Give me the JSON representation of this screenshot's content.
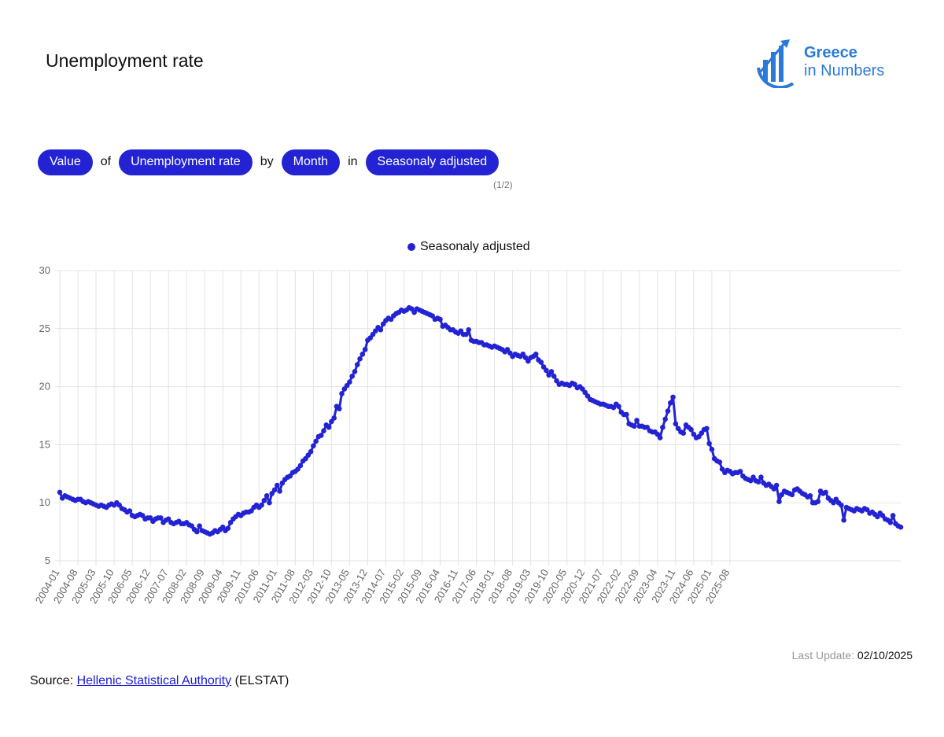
{
  "header": {
    "title": "Unemployment rate",
    "logo_line1": "Greece",
    "logo_line2": "in Numbers",
    "brand_color": "#2a7ad9",
    "logo_icon": "bar-chart-arrow-icon"
  },
  "filters": {
    "measure": "Value",
    "conn1": "of",
    "indicator": "Unemployment rate",
    "conn2": "by",
    "period": "Month",
    "conn3": "in",
    "series": "Seasonaly adjusted",
    "pager": "(1/2)",
    "pill_color": "#2323d4"
  },
  "footer": {
    "last_update_label": "Last Update:",
    "last_update_value": "02/10/2025",
    "source_prefix": "Source:",
    "source_link": "Hellenic Statistical Authority",
    "source_suffix": "(ELSTAT)"
  },
  "chart_data": {
    "type": "line",
    "legend_position": "top",
    "grid": true,
    "x_start": "2004-01",
    "x_end": "2025-08",
    "tick_labels": [
      "2004-01",
      "2004-08",
      "2005-03",
      "2005-10",
      "2006-05",
      "2006-12",
      "2007-07",
      "2008-02",
      "2008-09",
      "2009-04",
      "2009-11",
      "2010-06",
      "2011-01",
      "2011-08",
      "2012-03",
      "2012-10",
      "2013-05",
      "2013-12",
      "2014-07",
      "2015-02",
      "2015-09",
      "2016-04",
      "2016-11",
      "2017-06",
      "2018-01",
      "2018-08",
      "2019-03",
      "2019-10",
      "2020-05",
      "2020-12",
      "2021-07",
      "2022-02",
      "2022-09",
      "2023-04",
      "2023-11",
      "2024-06",
      "2025-01",
      "2025-08"
    ],
    "y_ticks": [
      5,
      10,
      15,
      20,
      25,
      30
    ],
    "ylim": [
      5,
      30
    ],
    "series": [
      {
        "name": "Seasonaly adjusted",
        "color": "#2323d4",
        "values": [
          10.9,
          10.4,
          10.6,
          10.5,
          10.4,
          10.3,
          10.2,
          10.3,
          10.3,
          10.1,
          10.0,
          10.1,
          10.0,
          9.9,
          9.8,
          9.7,
          9.8,
          9.7,
          9.6,
          9.8,
          9.9,
          9.8,
          10.0,
          9.8,
          9.5,
          9.4,
          9.2,
          9.3,
          8.9,
          8.8,
          8.9,
          9.0,
          8.9,
          8.6,
          8.7,
          8.7,
          8.4,
          8.6,
          8.7,
          8.7,
          8.3,
          8.5,
          8.6,
          8.3,
          8.2,
          8.3,
          8.4,
          8.2,
          8.2,
          8.3,
          8.1,
          8.0,
          7.7,
          7.5,
          8.0,
          7.6,
          7.5,
          7.4,
          7.3,
          7.4,
          7.6,
          7.5,
          7.7,
          7.9,
          7.6,
          7.8,
          8.3,
          8.6,
          8.8,
          9.0,
          8.9,
          9.1,
          9.2,
          9.2,
          9.3,
          9.6,
          9.8,
          9.6,
          9.8,
          10.2,
          10.6,
          10.0,
          10.8,
          11.1,
          11.5,
          11.0,
          11.7,
          12.0,
          12.2,
          12.3,
          12.6,
          12.7,
          12.9,
          13.2,
          13.6,
          13.8,
          14.1,
          14.4,
          14.9,
          15.3,
          15.7,
          15.8,
          16.2,
          16.7,
          16.5,
          17.0,
          17.3,
          18.3,
          18.1,
          19.4,
          19.8,
          20.1,
          20.4,
          20.9,
          21.3,
          21.9,
          22.4,
          22.8,
          23.2,
          24.0,
          24.2,
          24.5,
          24.8,
          25.1,
          24.9,
          25.4,
          25.7,
          25.9,
          25.8,
          26.1,
          26.3,
          26.4,
          26.6,
          26.5,
          26.6,
          26.8,
          26.7,
          26.4,
          26.7,
          26.6,
          26.5,
          26.4,
          26.3,
          26.2,
          26.1,
          25.8,
          25.9,
          25.8,
          25.2,
          25.3,
          25.1,
          24.9,
          24.9,
          24.7,
          24.6,
          24.8,
          24.5,
          24.5,
          24.9,
          24.0,
          23.9,
          23.9,
          23.8,
          23.8,
          23.6,
          23.6,
          23.5,
          23.4,
          23.5,
          23.4,
          23.3,
          23.2,
          23.0,
          23.2,
          22.9,
          22.6,
          22.8,
          22.7,
          22.6,
          22.8,
          22.5,
          22.2,
          22.5,
          22.6,
          22.8,
          22.3,
          22.1,
          21.7,
          21.4,
          21.0,
          21.3,
          20.9,
          20.5,
          20.2,
          20.3,
          20.2,
          20.2,
          20.1,
          20.3,
          20.2,
          19.9,
          20.0,
          19.8,
          19.5,
          19.2,
          18.9,
          18.8,
          18.7,
          18.6,
          18.5,
          18.5,
          18.4,
          18.3,
          18.3,
          18.2,
          18.5,
          18.3,
          17.8,
          17.6,
          17.6,
          16.8,
          16.7,
          16.6,
          17.1,
          16.6,
          16.6,
          16.5,
          16.5,
          16.2,
          16.1,
          16.1,
          15.9,
          15.6,
          16.5,
          17.2,
          17.9,
          18.6,
          19.1,
          16.8,
          16.4,
          16.1,
          16.0,
          16.7,
          16.5,
          16.3,
          15.9,
          15.6,
          15.7,
          16.0,
          16.3,
          16.4,
          15.1,
          14.6,
          13.8,
          13.6,
          13.5,
          12.9,
          12.6,
          12.8,
          12.7,
          12.5,
          12.6,
          12.6,
          12.7,
          12.3,
          12.1,
          12.0,
          11.9,
          12.2,
          11.9,
          11.8,
          12.2,
          11.7,
          11.5,
          11.6,
          11.4,
          11.2,
          11.5,
          10.1,
          10.7,
          11.0,
          10.9,
          10.8,
          10.7,
          11.1,
          11.2,
          11.0,
          10.8,
          10.7,
          10.5,
          10.6,
          10.0,
          10.0,
          10.1,
          11.0,
          10.8,
          10.9,
          10.4,
          10.2,
          10.0,
          10.3,
          10.0,
          9.8,
          8.5,
          9.6,
          9.5,
          9.4,
          9.3,
          9.5,
          9.4,
          9.3,
          9.5,
          9.4,
          9.1,
          9.2,
          9.0,
          8.8,
          9.1,
          8.9,
          8.6,
          8.5,
          8.3,
          8.9,
          8.2,
          8.0,
          7.9
        ]
      }
    ]
  }
}
